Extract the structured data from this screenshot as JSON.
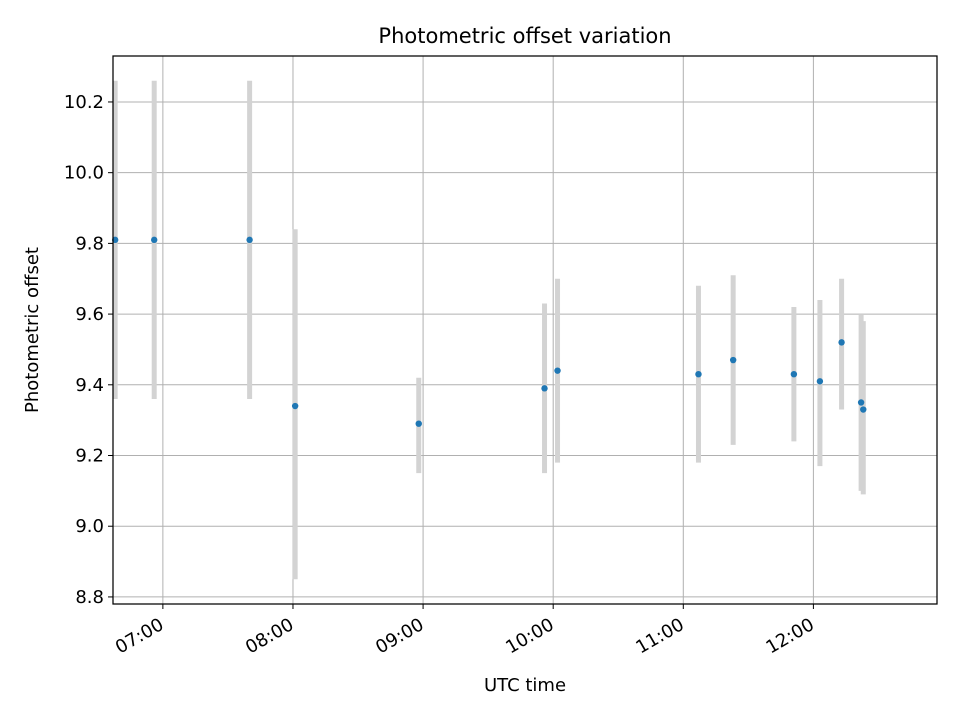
{
  "chart_data": {
    "type": "scatter",
    "title": "Photometric offset variation",
    "xlabel": "UTC time",
    "ylabel": "Photometric offset",
    "x_tick_labels": [
      "07:00",
      "08:00",
      "09:00",
      "10:00",
      "11:00",
      "12:00"
    ],
    "x_tick_hours": [
      7,
      8,
      9,
      10,
      11,
      12
    ],
    "y_tick_labels": [
      "8.8",
      "9.0",
      "9.2",
      "9.4",
      "9.6",
      "9.8",
      "10.0",
      "10.2"
    ],
    "y_ticks": [
      8.8,
      9.0,
      9.2,
      9.4,
      9.6,
      9.8,
      10.0,
      10.2
    ],
    "xlim": [
      "06:37",
      "12:57"
    ],
    "ylim": [
      8.78,
      10.33
    ],
    "grid": true,
    "points": [
      {
        "time": "06:38",
        "y": 9.81,
        "err_low": 9.36,
        "err_high": 10.26
      },
      {
        "time": "06:56",
        "y": 9.81,
        "err_low": 9.36,
        "err_high": 10.26
      },
      {
        "time": "07:40",
        "y": 9.81,
        "err_low": 9.36,
        "err_high": 10.26
      },
      {
        "time": "08:01",
        "y": 9.34,
        "err_low": 8.85,
        "err_high": 9.84
      },
      {
        "time": "08:58",
        "y": 9.29,
        "err_low": 9.15,
        "err_high": 9.42
      },
      {
        "time": "09:56",
        "y": 9.39,
        "err_low": 9.15,
        "err_high": 9.63
      },
      {
        "time": "10:02",
        "y": 9.44,
        "err_low": 9.18,
        "err_high": 9.7
      },
      {
        "time": "11:07",
        "y": 9.43,
        "err_low": 9.18,
        "err_high": 9.68
      },
      {
        "time": "11:23",
        "y": 9.47,
        "err_low": 9.23,
        "err_high": 9.71
      },
      {
        "time": "11:51",
        "y": 9.43,
        "err_low": 9.24,
        "err_high": 9.62
      },
      {
        "time": "12:03",
        "y": 9.41,
        "err_low": 9.17,
        "err_high": 9.64
      },
      {
        "time": "12:13",
        "y": 9.52,
        "err_low": 9.33,
        "err_high": 9.7
      },
      {
        "time": "12:22",
        "y": 9.35,
        "err_low": 9.1,
        "err_high": 9.6
      },
      {
        "time": "12:23",
        "y": 9.33,
        "err_low": 9.09,
        "err_high": 9.58
      }
    ],
    "colors": {
      "marker": "#1f77b4",
      "errorbar": "#d3d3d3",
      "grid": "#b0b0b0"
    }
  }
}
